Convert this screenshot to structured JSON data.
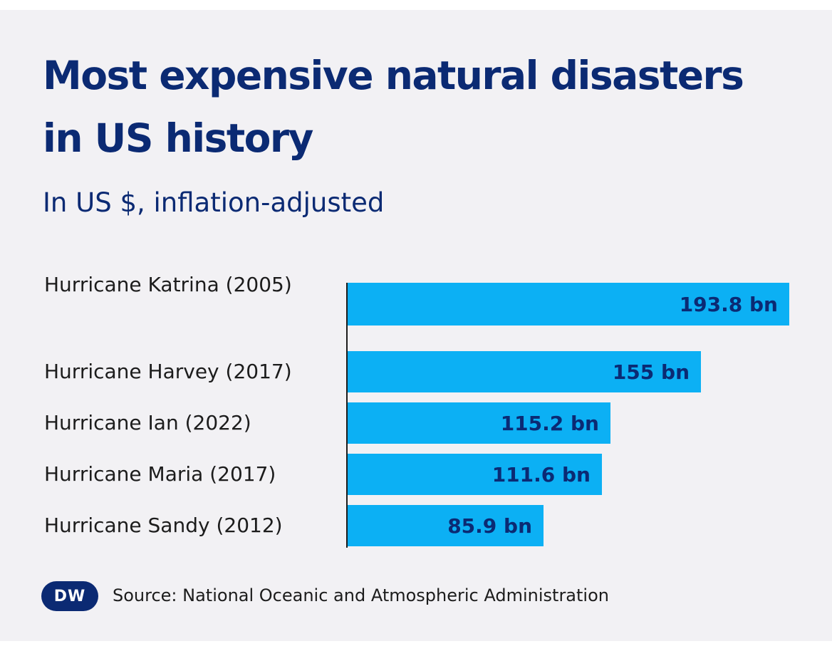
{
  "chart_data": {
    "type": "bar",
    "orientation": "horizontal",
    "title": "Most expensive natural disasters in US history",
    "subtitle": "In US $, inflation-adjusted",
    "categories": [
      "Hurricane Katrina (2005)",
      "Hurricane Harvey (2017)",
      "Hurricane Ian (2022)",
      "Hurricane Maria (2017)",
      "Hurricane Sandy (2012)"
    ],
    "values": [
      193.8,
      155,
      115.2,
      111.6,
      85.9
    ],
    "value_labels": [
      "193.8 bn",
      "155 bn",
      "115.2 bn",
      "111.6 bn",
      "85.9 bn"
    ],
    "unit": "bn",
    "xlabel": "",
    "ylabel": "",
    "xlim": [
      0,
      193.8
    ],
    "grid": false,
    "legend": "none"
  },
  "footer": {
    "logo_text": "DW",
    "source": "Source: National Oceanic and Atmospheric Administration"
  },
  "colors": {
    "bar": "#0cb0f4",
    "title": "#0b2a73",
    "value_label": "#0b2a73",
    "background": "#f2f1f4"
  }
}
